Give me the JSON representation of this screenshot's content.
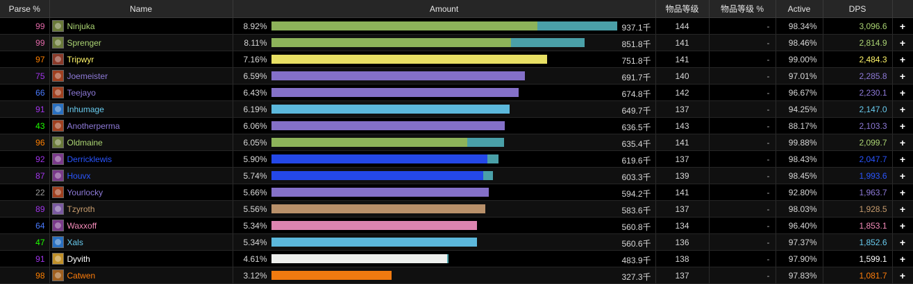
{
  "headers": {
    "parse": "Parse %",
    "name": "Name",
    "amount": "Amount",
    "ilvl": "物品等级",
    "ilvl_pct": "物品等级 %",
    "active": "Active",
    "dps": "DPS"
  },
  "colors": {
    "parse_legendary": "#e268a8",
    "parse_orange": "#ff8000",
    "parse_epic": "#a335ee",
    "parse_rare": "#4a7bff",
    "parse_uncommon": "#1eff00",
    "parse_grey": "#9d9d9d"
  },
  "rows": [
    {
      "parse": "99",
      "parse_color": "#e268a8",
      "name": "Ninjuka",
      "name_color": "#abd473",
      "icon_color": "#6a7a3a",
      "pct": "8.92%",
      "amount": "937.1千",
      "bar1": 0.773,
      "bar1_color": "#8db35a",
      "bar2": 0.232,
      "bar2_color": "#4aa0a8",
      "ilvl": "144",
      "ilvl_pct": "-",
      "active": "98.34%",
      "dps": "3,096.6",
      "plus": "+"
    },
    {
      "parse": "99",
      "parse_color": "#e268a8",
      "name": "Sprenger",
      "name_color": "#abd473",
      "icon_color": "#6a7a3a",
      "pct": "8.11%",
      "amount": "851.8千",
      "bar1": 0.696,
      "bar1_color": "#8db35a",
      "bar2": 0.213,
      "bar2_color": "#4aa0a8",
      "ilvl": "141",
      "ilvl_pct": "-",
      "active": "98.46%",
      "dps": "2,814.9",
      "plus": "+"
    },
    {
      "parse": "97",
      "parse_color": "#ff8000",
      "name": "Tripwyr",
      "name_color": "#fff569",
      "icon_color": "#8a3a2a",
      "pct": "7.16%",
      "amount": "751.8千",
      "bar1": 0.801,
      "bar1_color": "#e8e064",
      "bar2": 0,
      "bar2_color": "#e8e064",
      "ilvl": "141",
      "ilvl_pct": "-",
      "active": "99.00%",
      "dps": "2,484.3",
      "plus": "+"
    },
    {
      "parse": "75",
      "parse_color": "#a335ee",
      "name": "Joemeister",
      "name_color": "#8e7ad8",
      "icon_color": "#a04020",
      "pct": "6.59%",
      "amount": "691.7千",
      "bar1": 0.736,
      "bar1_color": "#8470c8",
      "bar2": 0,
      "bar2_color": "#8470c8",
      "ilvl": "140",
      "ilvl_pct": "-",
      "active": "97.01%",
      "dps": "2,285.8",
      "plus": "+"
    },
    {
      "parse": "66",
      "parse_color": "#4a7bff",
      "name": "Teejayo",
      "name_color": "#8e7ad8",
      "icon_color": "#a04020",
      "pct": "6.43%",
      "amount": "674.8千",
      "bar1": 0.718,
      "bar1_color": "#8470c8",
      "bar2": 0,
      "bar2_color": "#8470c8",
      "ilvl": "142",
      "ilvl_pct": "-",
      "active": "96.67%",
      "dps": "2,230.1",
      "plus": "+"
    },
    {
      "parse": "91",
      "parse_color": "#a335ee",
      "name": "Inhumage",
      "name_color": "#69ccf0",
      "icon_color": "#2a70c0",
      "pct": "6.19%",
      "amount": "649.7千",
      "bar1": 0.691,
      "bar1_color": "#5cb8dc",
      "bar2": 0,
      "bar2_color": "#5cb8dc",
      "ilvl": "137",
      "ilvl_pct": "-",
      "active": "94.25%",
      "dps": "2,147.0",
      "plus": "+"
    },
    {
      "parse": "43",
      "parse_color": "#1eff00",
      "name": "Anotherperma",
      "name_color": "#8e7ad8",
      "icon_color": "#a04020",
      "pct": "6.06%",
      "amount": "636.5千",
      "bar1": 0.677,
      "bar1_color": "#8470c8",
      "bar2": 0,
      "bar2_color": "#8470c8",
      "ilvl": "143",
      "ilvl_pct": "-",
      "active": "88.17%",
      "dps": "2,103.3",
      "plus": "+"
    },
    {
      "parse": "96",
      "parse_color": "#ff8000",
      "name": "Oldmaine",
      "name_color": "#abd473",
      "icon_color": "#6a7a3a",
      "pct": "6.05%",
      "amount": "635.4千",
      "bar1": 0.569,
      "bar1_color": "#8db35a",
      "bar2": 0.107,
      "bar2_color": "#4aa0a8",
      "ilvl": "141",
      "ilvl_pct": "-",
      "active": "99.88%",
      "dps": "2,099.7",
      "plus": "+"
    },
    {
      "parse": "92",
      "parse_color": "#a335ee",
      "name": "Derricklewis",
      "name_color": "#2a55ff",
      "icon_color": "#7a3a8a",
      "pct": "5.90%",
      "amount": "619.6千",
      "bar1": 0.627,
      "bar1_color": "#2448e8",
      "bar2": 0.032,
      "bar2_color": "#4aa0a8",
      "ilvl": "137",
      "ilvl_pct": "-",
      "active": "98.43%",
      "dps": "2,047.7",
      "plus": "+"
    },
    {
      "parse": "87",
      "parse_color": "#a335ee",
      "name": "Houvx",
      "name_color": "#2a55ff",
      "icon_color": "#7a3a8a",
      "pct": "5.74%",
      "amount": "603.3千",
      "bar1": 0.614,
      "bar1_color": "#2448e8",
      "bar2": 0.028,
      "bar2_color": "#4aa0a8",
      "ilvl": "139",
      "ilvl_pct": "-",
      "active": "98.45%",
      "dps": "1,993.6",
      "plus": "+"
    },
    {
      "parse": "22",
      "parse_color": "#9d9d9d",
      "name": "Yourlocky",
      "name_color": "#8e7ad8",
      "icon_color": "#a04020",
      "pct": "5.66%",
      "amount": "594.2千",
      "bar1": 0.632,
      "bar1_color": "#8470c8",
      "bar2": 0,
      "bar2_color": "#8470c8",
      "ilvl": "141",
      "ilvl_pct": "-",
      "active": "92.80%",
      "dps": "1,963.7",
      "plus": "+"
    },
    {
      "parse": "89",
      "parse_color": "#a335ee",
      "name": "Tzyroth",
      "name_color": "#c79c6e",
      "icon_color": "#7a5aa0",
      "pct": "5.56%",
      "amount": "583.6千",
      "bar1": 0.621,
      "bar1_color": "#b8906a",
      "bar2": 0,
      "bar2_color": "#b8906a",
      "ilvl": "137",
      "ilvl_pct": "-",
      "active": "98.03%",
      "dps": "1,928.5",
      "plus": "+"
    },
    {
      "parse": "64",
      "parse_color": "#4a7bff",
      "name": "Waxxoff",
      "name_color": "#f58cba",
      "icon_color": "#7a3a8a",
      "pct": "5.34%",
      "amount": "560.8千",
      "bar1": 0.597,
      "bar1_color": "#dc84b0",
      "bar2": 0,
      "bar2_color": "#dc84b0",
      "ilvl": "134",
      "ilvl_pct": "-",
      "active": "96.40%",
      "dps": "1,853.1",
      "plus": "+"
    },
    {
      "parse": "47",
      "parse_color": "#1eff00",
      "name": "Xals",
      "name_color": "#69ccf0",
      "icon_color": "#2a70c0",
      "pct": "5.34%",
      "amount": "560.6千",
      "bar1": 0.597,
      "bar1_color": "#5cb8dc",
      "bar2": 0,
      "bar2_color": "#5cb8dc",
      "ilvl": "136",
      "ilvl_pct": "-",
      "active": "97.37%",
      "dps": "1,852.6",
      "plus": "+"
    },
    {
      "parse": "91",
      "parse_color": "#a335ee",
      "name": "Dyvith",
      "name_color": "#ffffff",
      "icon_color": "#c0902a",
      "pct": "4.61%",
      "amount": "483.9千",
      "bar1": 0.51,
      "bar1_color": "#eef0ee",
      "bar2": 0.005,
      "bar2_color": "#4aa0a8",
      "ilvl": "138",
      "ilvl_pct": "-",
      "active": "97.90%",
      "dps": "1,599.1",
      "plus": "+"
    },
    {
      "parse": "98",
      "parse_color": "#ff8000",
      "name": "Catwen",
      "name_color": "#ff7d0a",
      "icon_color": "#a06020",
      "pct": "3.12%",
      "amount": "327.3千",
      "bar1": 0.349,
      "bar1_color": "#f07a10",
      "bar2": 0,
      "bar2_color": "#f07a10",
      "ilvl": "137",
      "ilvl_pct": "-",
      "active": "97.83%",
      "dps": "1,081.7",
      "plus": "+"
    }
  ]
}
